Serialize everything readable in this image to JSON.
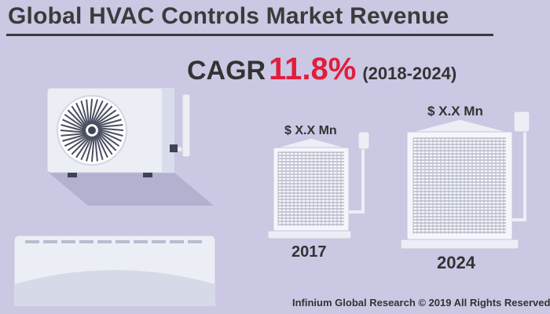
{
  "header": {
    "title": "Global HVAC Controls Market Revenue"
  },
  "cagr": {
    "label": "CAGR",
    "value": "11.8%",
    "period": "(2018-2024)",
    "value_color": "#e01e3c"
  },
  "units": [
    {
      "value_label": "$ X.X Mn",
      "year": "2017"
    },
    {
      "value_label": "$ X.X Mn",
      "year": "2024"
    }
  ],
  "footer": {
    "credit": "Infinium Global Research © 2019 All Rights Reserved"
  },
  "colors": {
    "background": "#cbc8e4",
    "text": "#3b3b3b",
    "accent": "#e01e3c"
  }
}
